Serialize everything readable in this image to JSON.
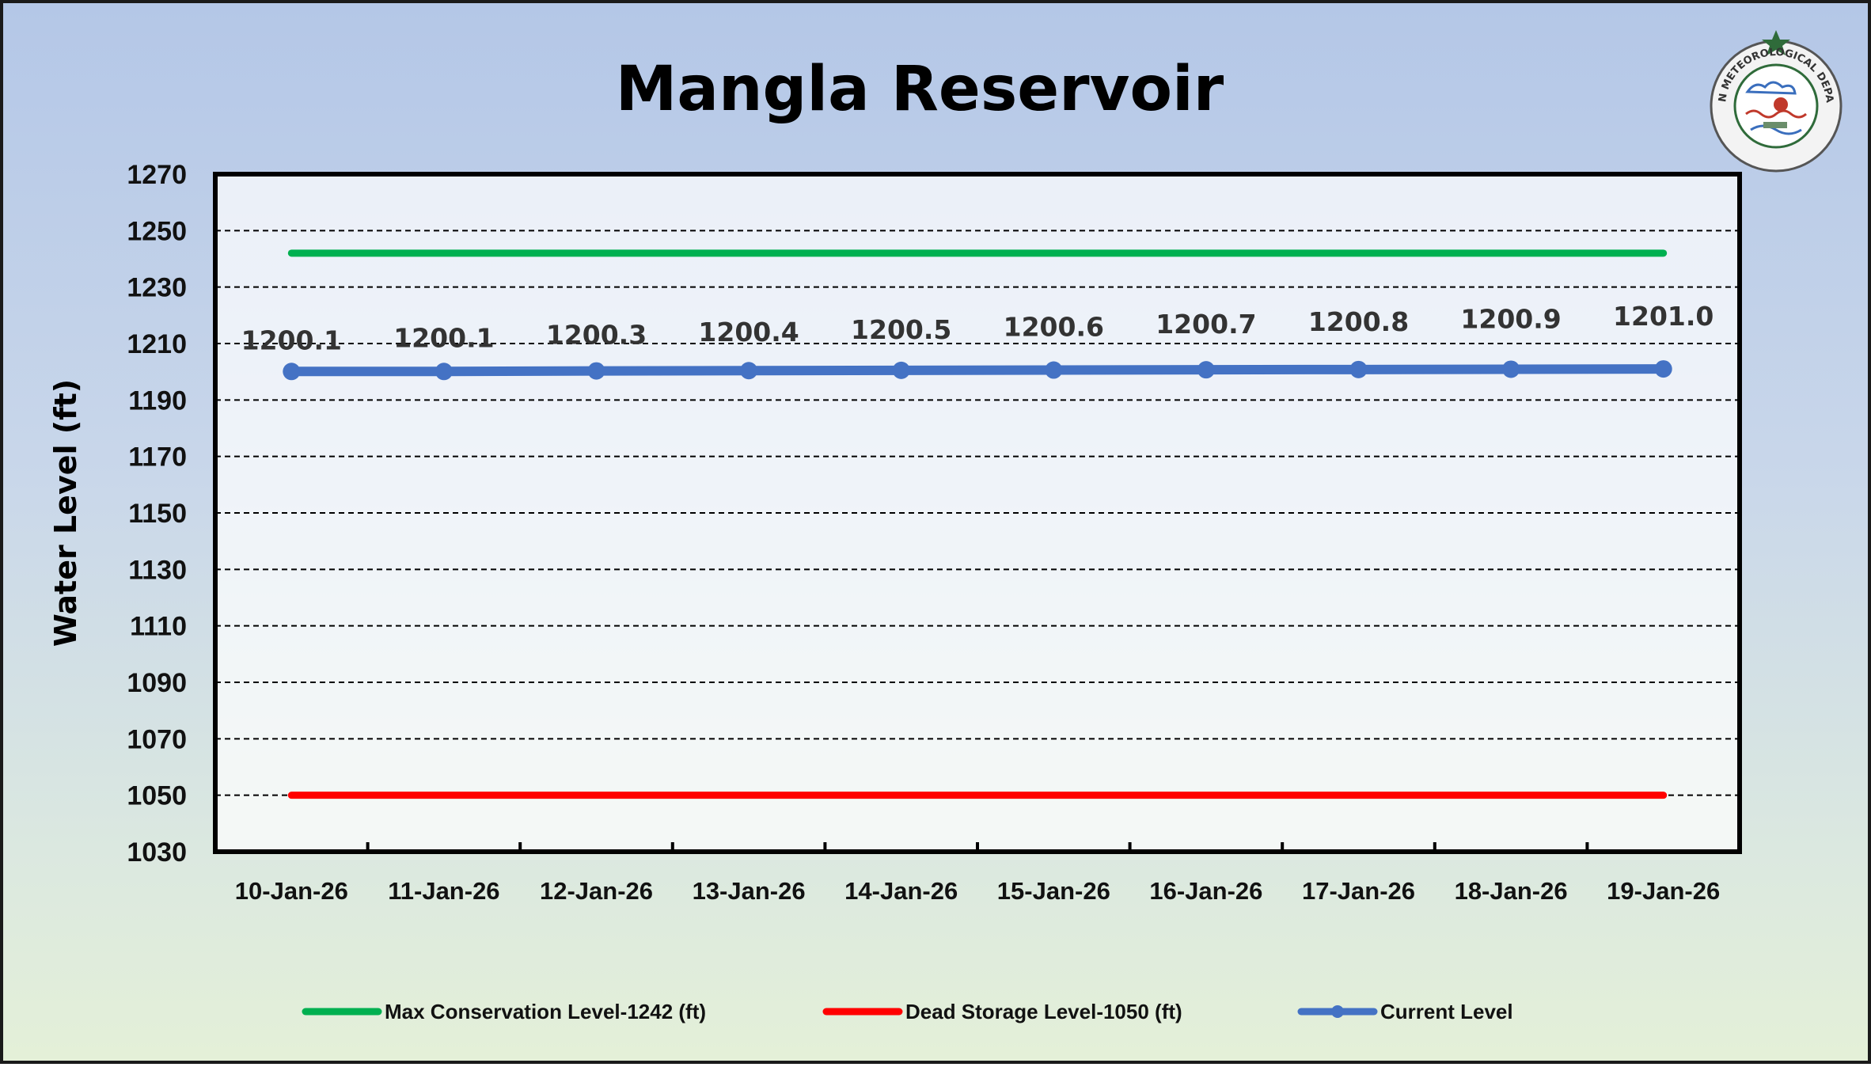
{
  "chart_data": {
    "type": "line",
    "title": "Mangla Reservoir",
    "ylabel": "Water Level (ft)",
    "xlabel": "",
    "ylim": [
      1030,
      1270
    ],
    "yticks": [
      1030,
      1050,
      1070,
      1090,
      1110,
      1130,
      1150,
      1170,
      1190,
      1210,
      1230,
      1250,
      1270
    ],
    "categories": [
      "10-Jan-26",
      "11-Jan-26",
      "12-Jan-26",
      "13-Jan-26",
      "14-Jan-26",
      "15-Jan-26",
      "16-Jan-26",
      "17-Jan-26",
      "18-Jan-26",
      "19-Jan-26"
    ],
    "grid": "horizontal dashed",
    "legend_position": "bottom",
    "series": [
      {
        "name": "Max Conservation Level-1242 (ft)",
        "color": "#00b050",
        "values": [
          1242,
          1242,
          1242,
          1242,
          1242,
          1242,
          1242,
          1242,
          1242,
          1242
        ]
      },
      {
        "name": "Dead Storage Level-1050 (ft)",
        "color": "#ff0000",
        "values": [
          1050,
          1050,
          1050,
          1050,
          1050,
          1050,
          1050,
          1050,
          1050,
          1050
        ]
      },
      {
        "name": "Current Level",
        "color": "#4472c4",
        "markers": true,
        "values": [
          1200.1,
          1200.1,
          1200.3,
          1200.4,
          1200.5,
          1200.6,
          1200.7,
          1200.8,
          1200.9,
          1201.0
        ],
        "data_labels": [
          "1200.1",
          "1200.1",
          "1200.3",
          "1200.4",
          "1200.5",
          "1200.6",
          "1200.7",
          "1200.8",
          "1200.9",
          "1201.0"
        ]
      }
    ]
  },
  "logo": {
    "text": "PAKISTAN METEOROLOGICAL DEPARTMENT",
    "icon": "pmd-seal-icon"
  }
}
